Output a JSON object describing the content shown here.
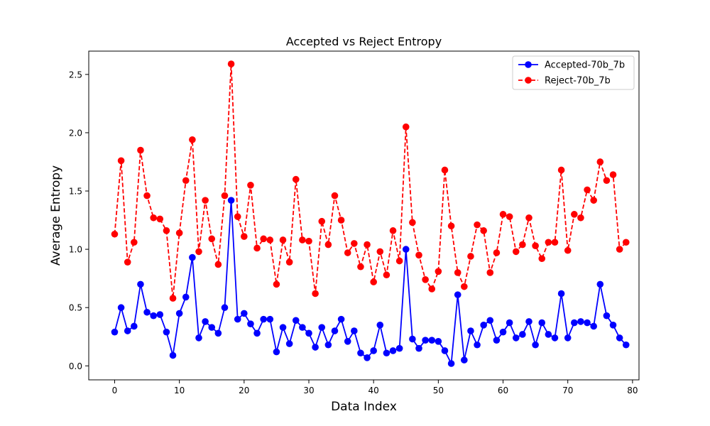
{
  "chart_data": {
    "type": "line",
    "title": "Accepted vs Reject Entropy",
    "xlabel": "Data Index",
    "ylabel": "Average Entropy",
    "xlim": [
      -4,
      81
    ],
    "ylim": [
      -0.12,
      2.7
    ],
    "xticks": [
      0,
      10,
      20,
      30,
      40,
      50,
      60,
      70,
      80
    ],
    "yticks": [
      0.0,
      0.5,
      1.0,
      1.5,
      2.0,
      2.5
    ],
    "ytick_labels": [
      "0.0",
      "0.5",
      "1.0",
      "1.5",
      "2.0",
      "2.5"
    ],
    "grid": false,
    "legend_position": "top-right",
    "x": [
      0,
      1,
      2,
      3,
      4,
      5,
      6,
      7,
      8,
      9,
      10,
      11,
      12,
      13,
      14,
      15,
      16,
      17,
      18,
      19,
      20,
      21,
      22,
      23,
      24,
      25,
      26,
      27,
      28,
      29,
      30,
      31,
      32,
      33,
      34,
      35,
      36,
      37,
      38,
      39,
      40,
      41,
      42,
      43,
      44,
      45,
      46,
      47,
      48,
      49,
      50,
      51,
      52,
      53,
      54,
      55,
      56,
      57,
      58,
      59,
      60,
      61,
      62,
      63,
      64,
      65,
      66,
      67,
      68,
      69,
      70,
      71,
      72,
      73,
      74,
      75,
      76,
      77,
      78,
      79
    ],
    "series": [
      {
        "name": "Accepted-70b_7b",
        "color": "#0000ff",
        "line_style": "solid",
        "marker": "circle",
        "values": [
          0.29,
          0.5,
          0.3,
          0.34,
          0.7,
          0.46,
          0.43,
          0.44,
          0.29,
          0.09,
          0.45,
          0.59,
          0.93,
          0.24,
          0.38,
          0.33,
          0.28,
          0.5,
          1.42,
          0.4,
          0.45,
          0.36,
          0.28,
          0.4,
          0.4,
          0.12,
          0.33,
          0.19,
          0.39,
          0.33,
          0.28,
          0.16,
          0.33,
          0.18,
          0.3,
          0.4,
          0.21,
          0.3,
          0.11,
          0.07,
          0.13,
          0.35,
          0.11,
          0.13,
          0.15,
          1.0,
          0.23,
          0.15,
          0.22,
          0.22,
          0.21,
          0.13,
          0.02,
          0.61,
          0.05,
          0.3,
          0.18,
          0.35,
          0.39,
          0.22,
          0.29,
          0.37,
          0.24,
          0.27,
          0.38,
          0.18,
          0.37,
          0.27,
          0.24,
          0.62,
          0.24,
          0.37,
          0.38,
          0.37,
          0.34,
          0.7,
          0.43,
          0.35,
          0.24,
          0.18
        ]
      },
      {
        "name": "Reject-70b_7b",
        "color": "#ff0000",
        "line_style": "dashed",
        "marker": "circle",
        "values": [
          1.13,
          1.76,
          0.89,
          1.06,
          1.85,
          1.46,
          1.27,
          1.26,
          1.16,
          0.58,
          1.14,
          1.59,
          1.94,
          0.98,
          1.42,
          1.09,
          0.87,
          1.46,
          2.59,
          1.28,
          1.11,
          1.55,
          1.01,
          1.09,
          1.08,
          0.7,
          1.08,
          0.89,
          1.6,
          1.08,
          1.07,
          0.62,
          1.24,
          1.04,
          1.46,
          1.25,
          0.97,
          1.05,
          0.85,
          1.04,
          0.72,
          0.98,
          0.78,
          1.16,
          0.9,
          2.05,
          1.23,
          0.95,
          0.74,
          0.66,
          0.81,
          1.68,
          1.2,
          0.8,
          0.68,
          0.94,
          1.21,
          1.16,
          0.8,
          0.97,
          1.3,
          1.28,
          0.98,
          1.04,
          1.27,
          1.03,
          0.92,
          1.06,
          1.06,
          1.68,
          0.99,
          1.3,
          1.27,
          1.51,
          1.42,
          1.75,
          1.59,
          1.64,
          1.0,
          1.06
        ]
      }
    ]
  }
}
